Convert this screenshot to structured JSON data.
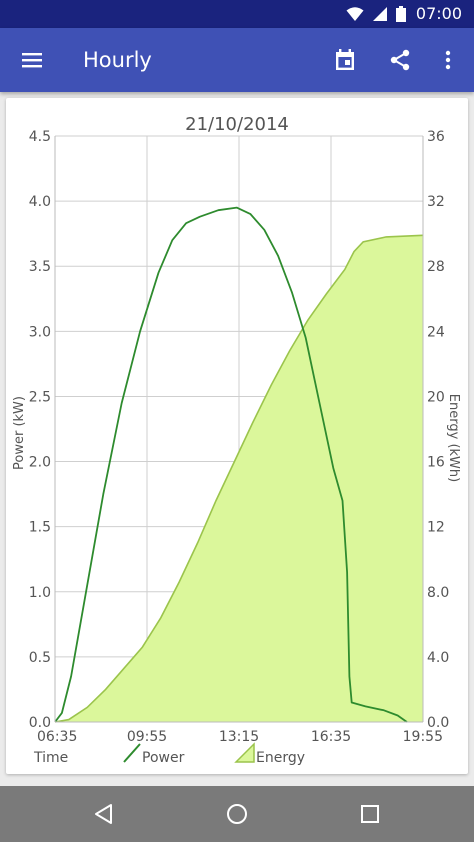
{
  "status_bar": {
    "time": "07:00"
  },
  "app_bar": {
    "title": "Hourly"
  },
  "chart_data": {
    "type": "line",
    "title": "21/10/2014",
    "x_axis_label": "Time",
    "y_left_label": "Power (kW)",
    "y_right_label": "Energy (kWh)",
    "x_ticks": [
      "06:35",
      "09:55",
      "13:15",
      "16:35",
      "19:55"
    ],
    "x_range_minutes": [
      395,
      1195
    ],
    "y_left_ticks": [
      "0.0",
      "0.5",
      "1.0",
      "1.5",
      "2.0",
      "2.5",
      "3.0",
      "3.5",
      "4.0",
      "4.5"
    ],
    "y_left_range": [
      0,
      4.5
    ],
    "y_right_ticks": [
      "0.0",
      "4.0",
      "8.0",
      "12",
      "16",
      "20",
      "24",
      "28",
      "32",
      "36"
    ],
    "y_right_range": [
      0,
      36
    ],
    "grid": true,
    "legend_position": "bottom",
    "series": [
      {
        "name": "Power",
        "axis": "left",
        "type": "line",
        "color": "#2e8b2e",
        "points": [
          [
            "06:35",
            0.0
          ],
          [
            "06:50",
            0.07
          ],
          [
            "07:10",
            0.35
          ],
          [
            "07:40",
            0.95
          ],
          [
            "08:20",
            1.75
          ],
          [
            "09:00",
            2.45
          ],
          [
            "09:40",
            3.0
          ],
          [
            "10:20",
            3.45
          ],
          [
            "10:50",
            3.7
          ],
          [
            "11:20",
            3.83
          ],
          [
            "11:50",
            3.88
          ],
          [
            "12:30",
            3.93
          ],
          [
            "13:10",
            3.95
          ],
          [
            "13:40",
            3.9
          ],
          [
            "14:10",
            3.78
          ],
          [
            "14:40",
            3.58
          ],
          [
            "15:10",
            3.3
          ],
          [
            "15:40",
            2.95
          ],
          [
            "16:10",
            2.45
          ],
          [
            "16:40",
            1.95
          ],
          [
            "17:00",
            1.7
          ],
          [
            "17:10",
            1.15
          ],
          [
            "17:15",
            0.35
          ],
          [
            "17:20",
            0.15
          ],
          [
            "17:50",
            0.12
          ],
          [
            "18:30",
            0.09
          ],
          [
            "19:00",
            0.05
          ],
          [
            "19:20",
            0.0
          ]
        ]
      },
      {
        "name": "Energy",
        "axis": "right",
        "type": "area",
        "color": "#9bc44c",
        "fill": "#dbf79b",
        "points": [
          [
            "06:35",
            0.0
          ],
          [
            "07:05",
            0.15
          ],
          [
            "07:45",
            0.9
          ],
          [
            "08:25",
            2.0
          ],
          [
            "09:05",
            3.3
          ],
          [
            "09:45",
            4.6
          ],
          [
            "10:25",
            6.4
          ],
          [
            "11:05",
            8.6
          ],
          [
            "11:45",
            11.0
          ],
          [
            "12:25",
            13.6
          ],
          [
            "13:05",
            16.0
          ],
          [
            "13:45",
            18.4
          ],
          [
            "14:25",
            20.7
          ],
          [
            "15:05",
            22.8
          ],
          [
            "15:45",
            24.7
          ],
          [
            "16:25",
            26.3
          ],
          [
            "17:05",
            27.8
          ],
          [
            "17:25",
            28.9
          ],
          [
            "17:45",
            29.5
          ],
          [
            "18:35",
            29.8
          ],
          [
            "19:55",
            29.9
          ]
        ]
      }
    ]
  }
}
